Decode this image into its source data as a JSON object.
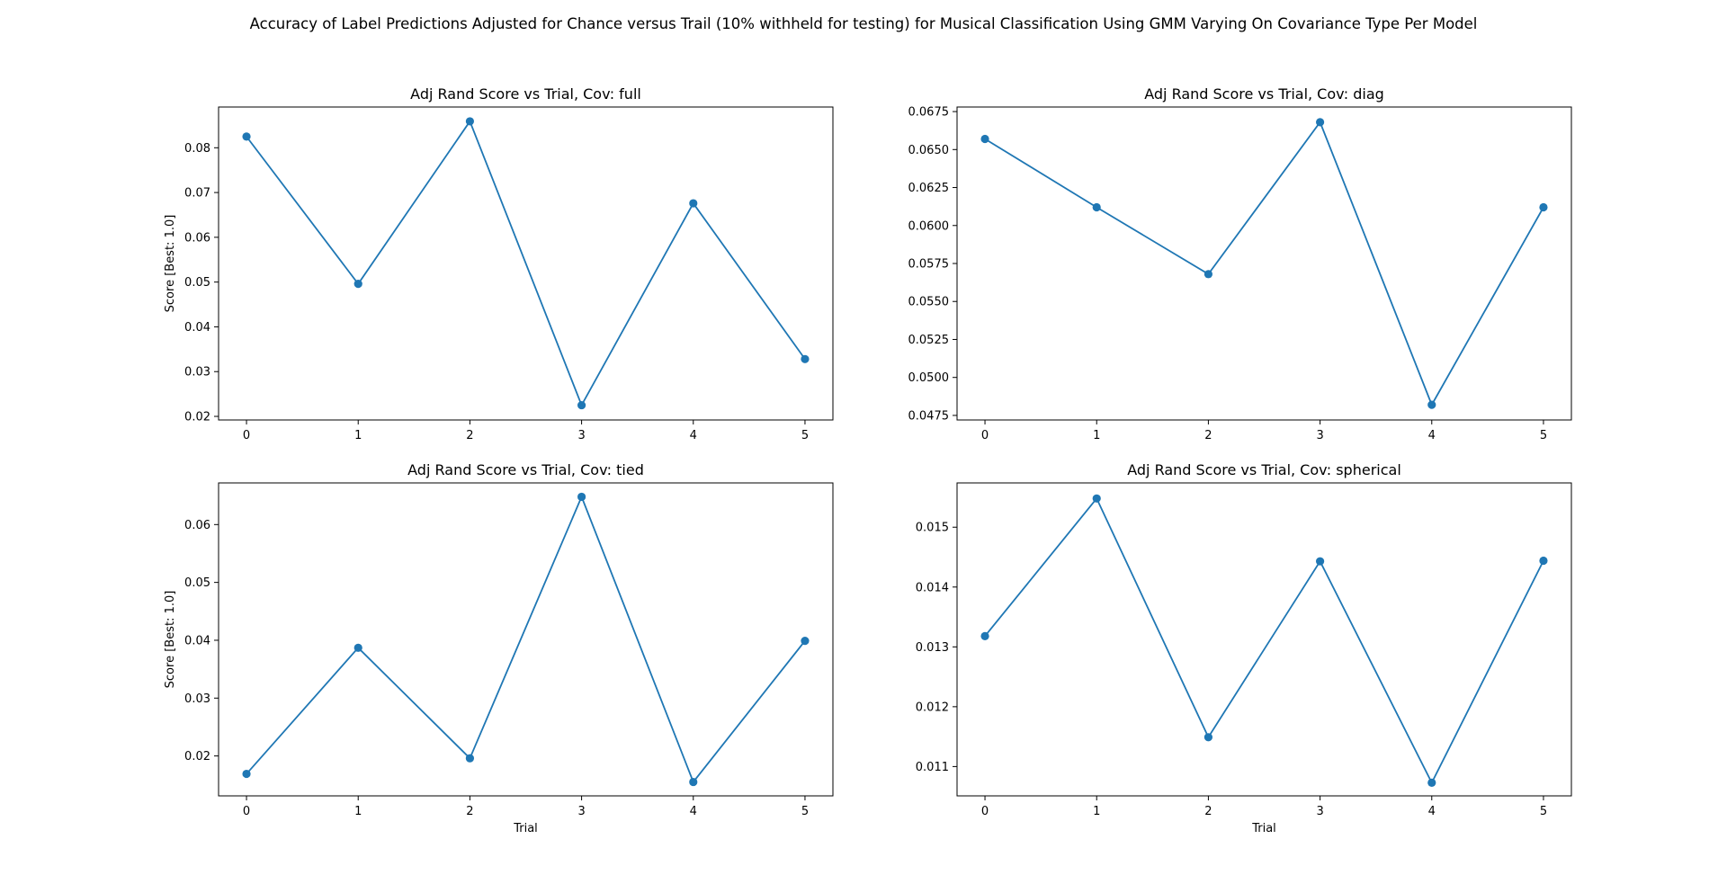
{
  "suptitle": "Accuracy of Label Predictions Adjusted for Chance versus Trail (10% withheld for testing) for Musical Classification Using GMM Varying On Covariance Type Per Model",
  "colors": {
    "series": "#1f77b4",
    "axis": "#000000",
    "background": "#ffffff"
  },
  "chart_data": [
    {
      "type": "line",
      "title": "Adj Rand Score vs Trial, Cov: full",
      "xlabel": "",
      "ylabel": "Score [Best: 1.0]",
      "x": [
        0,
        1,
        2,
        3,
        4,
        5
      ],
      "xticks": [
        "0",
        "1",
        "2",
        "3",
        "4",
        "5"
      ],
      "xlim": [
        -0.25,
        5.25
      ],
      "yticks": [
        "0.02",
        "0.03",
        "0.04",
        "0.05",
        "0.06",
        "0.07",
        "0.08"
      ],
      "ytick_values": [
        0.02,
        0.03,
        0.04,
        0.05,
        0.06,
        0.07,
        0.08
      ],
      "ylim": [
        0.0192,
        0.0891
      ],
      "values": [
        0.0825,
        0.0496,
        0.0859,
        0.0225,
        0.0676,
        0.0328
      ],
      "markers": true,
      "grid": false
    },
    {
      "type": "line",
      "title": "Adj Rand Score vs Trial, Cov: diag",
      "xlabel": "",
      "ylabel": "",
      "x": [
        0,
        1,
        2,
        3,
        4,
        5
      ],
      "xticks": [
        "0",
        "1",
        "2",
        "3",
        "4",
        "5"
      ],
      "xlim": [
        -0.25,
        5.25
      ],
      "yticks": [
        "0.0475",
        "0.0500",
        "0.0525",
        "0.0550",
        "0.0575",
        "0.0600",
        "0.0625",
        "0.0650",
        "0.0675"
      ],
      "ytick_values": [
        0.0475,
        0.05,
        0.0525,
        0.055,
        0.0575,
        0.06,
        0.0625,
        0.065,
        0.0675
      ],
      "ylim": [
        0.0472,
        0.0678
      ],
      "values": [
        0.0657,
        0.0612,
        0.0568,
        0.0668,
        0.0482,
        0.0612
      ],
      "markers": true,
      "grid": false
    },
    {
      "type": "line",
      "title": "Adj Rand Score vs Trial, Cov: tied",
      "xlabel": "Trial",
      "ylabel": "Score [Best: 1.0]",
      "x": [
        0,
        1,
        2,
        3,
        4,
        5
      ],
      "xticks": [
        "0",
        "1",
        "2",
        "3",
        "4",
        "5"
      ],
      "xlim": [
        -0.25,
        5.25
      ],
      "yticks": [
        "0.02",
        "0.03",
        "0.04",
        "0.05",
        "0.06"
      ],
      "ytick_values": [
        0.02,
        0.03,
        0.04,
        0.05,
        0.06
      ],
      "ylim": [
        0.0131,
        0.0672
      ],
      "values": [
        0.0169,
        0.0387,
        0.0196,
        0.0648,
        0.0155,
        0.0399
      ],
      "markers": true,
      "grid": false
    },
    {
      "type": "line",
      "title": "Adj Rand Score vs Trial, Cov: spherical",
      "xlabel": "Trial",
      "ylabel": "",
      "x": [
        0,
        1,
        2,
        3,
        4,
        5
      ],
      "xticks": [
        "0",
        "1",
        "2",
        "3",
        "4",
        "5"
      ],
      "xlim": [
        -0.25,
        5.25
      ],
      "yticks": [
        "0.011",
        "0.012",
        "0.013",
        "0.014",
        "0.015"
      ],
      "ytick_values": [
        0.011,
        0.012,
        0.013,
        0.014,
        0.015
      ],
      "ylim": [
        0.01051,
        0.01574
      ],
      "values": [
        0.01318,
        0.01548,
        0.01149,
        0.01443,
        0.01073,
        0.01444
      ],
      "markers": true,
      "grid": false
    }
  ]
}
